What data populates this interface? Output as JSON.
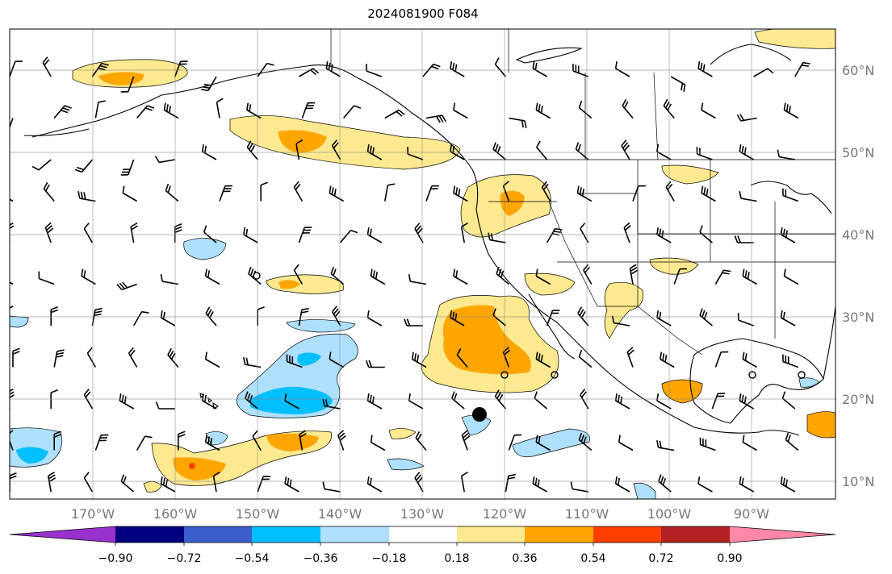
{
  "title": "2024081900 F084",
  "lon_labels": [
    "170°W",
    "160°W",
    "150°W",
    "140°W",
    "130°W",
    "120°W",
    "110°W",
    "100°W",
    "90°W"
  ],
  "lat_labels": [
    "60°N",
    "50°N",
    "40°N",
    "30°N",
    "20°N",
    "10°N"
  ],
  "colorbar": {
    "colors": [
      "#9932cc",
      "#000080",
      "#3a5fcd",
      "#00bfff",
      "#aee0fb",
      "#ffffff",
      "#fde98f",
      "#ffa500",
      "#ff3f00",
      "#b22222",
      "#ff88aa"
    ],
    "labels": [
      "−0.90",
      "−0.72",
      "−0.54",
      "−0.36",
      "−0.18",
      "0.18",
      "0.36",
      "0.54",
      "0.72",
      "0.90"
    ]
  }
}
